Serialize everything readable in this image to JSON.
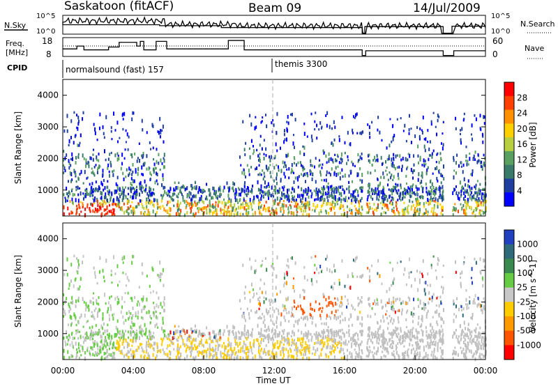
{
  "header": {
    "site": "Saskatoon (fitACF)",
    "beam": "Beam 09",
    "date": "14/Jul/2009"
  },
  "top_panel": {
    "left_label": "N.Sky",
    "right_label": "N.Search",
    "left_ticks": [
      "10^5",
      "10^0"
    ],
    "right_ticks": [
      "10^5",
      "10^0"
    ]
  },
  "freq_panel": {
    "left_label_1": "Freq.",
    "left_label_2": "[MHz]",
    "right_label": "Nave",
    "left_ticks": [
      "18",
      "8"
    ],
    "right_ticks": [
      "60",
      "0"
    ]
  },
  "cpid": {
    "label": "CPID",
    "mode1": "normalsound (fast) 157",
    "mode2": "themis 3300"
  },
  "colors": {
    "scale": [
      "#0000ff",
      "#1f3fa0",
      "#3a7a6a",
      "#5aa060",
      "#b8d040",
      "#ffd000",
      "#ff9000",
      "#ff4000",
      "#ff0000"
    ],
    "velocity": [
      "#2040c0",
      "#2e6a7a",
      "#3a8a50",
      "#66cc44",
      "#c8c8c8",
      "#ffcc00",
      "#ff9900",
      "#ff5500",
      "#ff0000"
    ],
    "ground_gray": "#c0c0c0"
  },
  "chart_data": [
    {
      "type": "heatmap",
      "name": "power",
      "ylabel": "Slant Range [km]",
      "yticks": [
        "1000",
        "2000",
        "3000",
        "4000"
      ],
      "colorbar_label": "Power [dB]",
      "colorbar_ticks": [
        "4",
        "8",
        "12",
        "16",
        "20",
        "24",
        "28"
      ],
      "ylim": [
        180,
        4500
      ],
      "marker_line": "12:00"
    },
    {
      "type": "heatmap",
      "name": "velocity",
      "ylabel": "Slant Range [km]",
      "yticks": [
        "1000",
        "2000",
        "3000",
        "4000"
      ],
      "colorbar_label": "Velocity [m s^-1]",
      "colorbar_ticks": [
        "1000",
        "500",
        "100",
        "25",
        "-25",
        "-100",
        "-500",
        "-1000"
      ],
      "ylim": [
        180,
        4500
      ],
      "marker_line": "12:00"
    }
  ],
  "x_axis": {
    "ticks": [
      "00:00",
      "04:00",
      "08:00",
      "12:00",
      "16:00",
      "20:00",
      "00:00"
    ],
    "label": "Time UT"
  }
}
